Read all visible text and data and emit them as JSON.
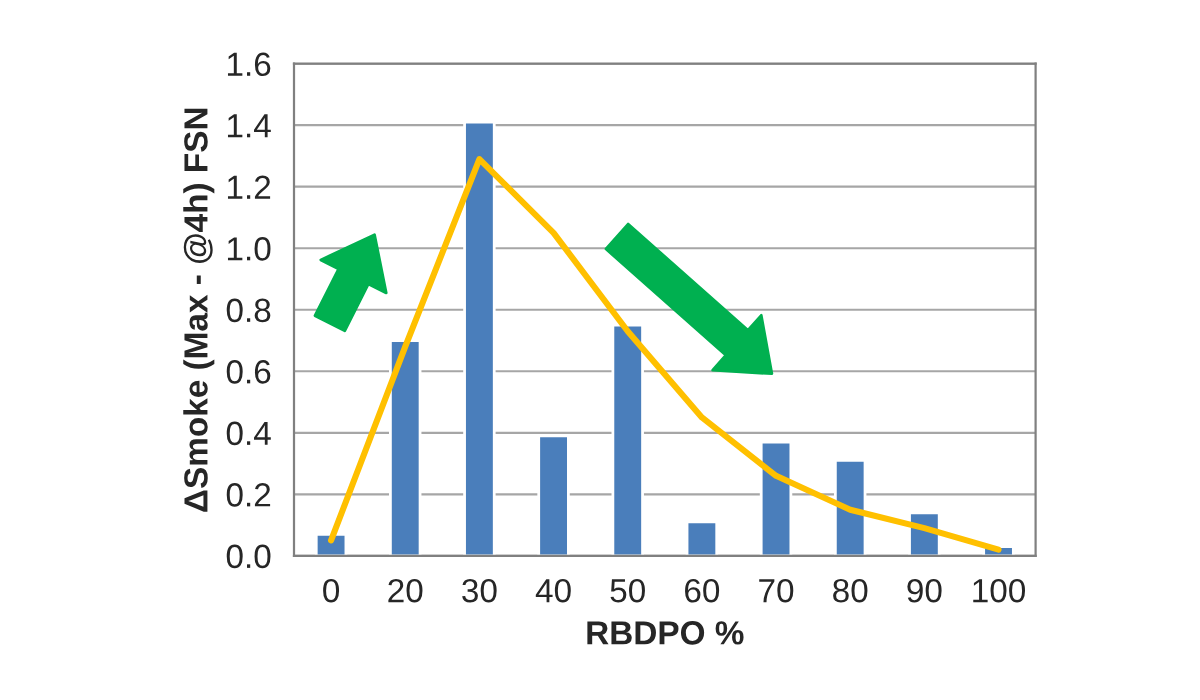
{
  "chart_data": {
    "type": "bar",
    "xlabel": "RBDPO %",
    "ylabel": "ΔSmoke (Max - @4h) FSN",
    "categories": [
      "0",
      "20",
      "30",
      "40",
      "50",
      "60",
      "70",
      "80",
      "90",
      "100"
    ],
    "series": [
      {
        "color": "#4a7ebb",
        "values": [
          0.07,
          0.7,
          1.41,
          0.39,
          0.75,
          0.11,
          0.37,
          0.31,
          0.14,
          0.03
        ]
      },
      {
        "type": "line",
        "color": "#ffc000",
        "values": [
          0.05,
          0.68,
          1.29,
          1.05,
          0.73,
          0.45,
          0.26,
          0.15,
          0.09,
          0.02
        ]
      }
    ],
    "ylim": [
      0,
      1.6
    ],
    "yticks": [
      {
        "value": 0,
        "label": "0.0"
      },
      0.2,
      0.4,
      0.6,
      0.8,
      {
        "value": 1,
        "label": "1.0"
      },
      1.2,
      1.4,
      1.6
    ],
    "grid": "y",
    "legend": false
  }
}
